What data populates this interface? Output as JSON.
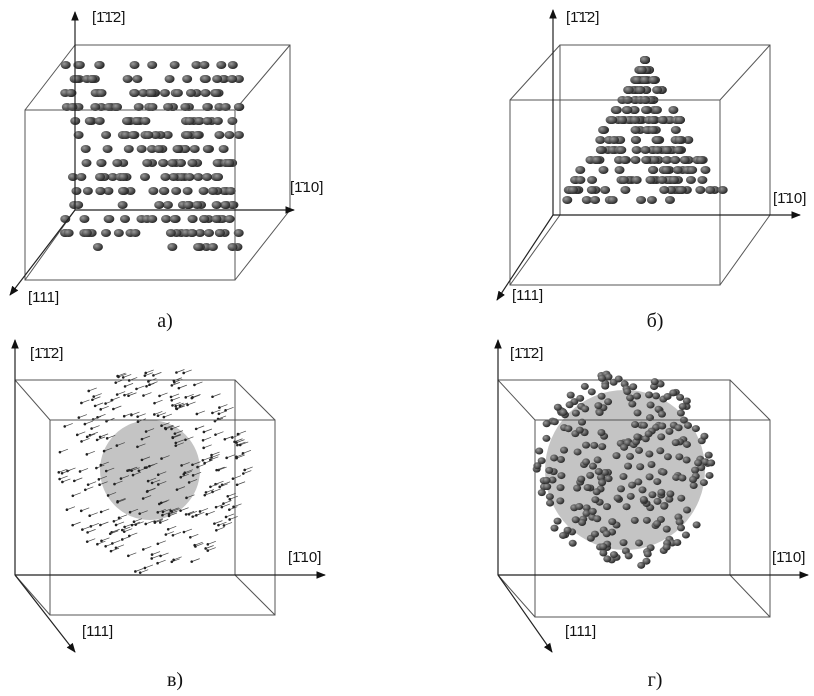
{
  "panels": [
    {
      "caption": "а)",
      "axis_z": "[1̄1̄2]",
      "axis_x": "[1̄10]",
      "axis_y": "[111]"
    },
    {
      "caption": "б)",
      "axis_z": "[1̄1̄2]",
      "axis_x": "[1̄10]",
      "axis_y": "[111]"
    },
    {
      "caption": "в)",
      "axis_z": "[1̄1̄2]",
      "axis_x": "[1̄10]",
      "axis_y": "[111]"
    },
    {
      "caption": "г)",
      "axis_z": "[1̄1̄2]",
      "axis_x": "[1̄10]",
      "axis_y": "[111]"
    }
  ]
}
